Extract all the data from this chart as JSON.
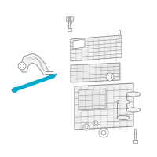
{
  "bg_color": "#ffffff",
  "lc": "#888888",
  "hc": "#00aacc",
  "figsize": [
    2.0,
    2.0
  ],
  "dpi": 100
}
